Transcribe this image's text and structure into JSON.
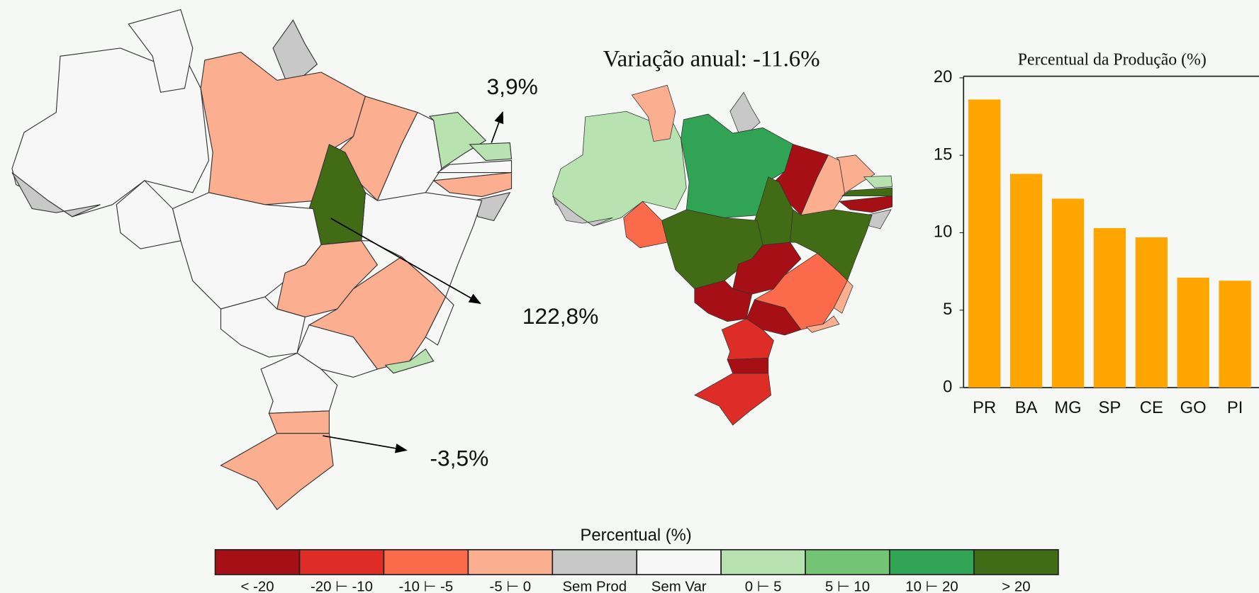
{
  "chart_data": {
    "type": "bar",
    "title": "Percentual da Produção (%)",
    "categories": [
      "PR",
      "BA",
      "MG",
      "SP",
      "CE",
      "GO",
      "PI"
    ],
    "values": [
      18.6,
      13.8,
      12.2,
      10.3,
      9.7,
      7.1,
      6.9
    ],
    "color": "#ffa500",
    "ylim": [
      0,
      20
    ],
    "yticks": [
      0,
      5,
      10,
      15,
      20
    ]
  },
  "maps": {
    "title": "Variação anual: -11.6%",
    "annotations": [
      "3,9%",
      "122,8%",
      "-3,5%"
    ]
  },
  "legend": {
    "title": "Percentual (%)",
    "items": [
      {
        "label": "< -20",
        "color": "#a50f15"
      },
      {
        "label": "-20 ⊢ -10",
        "color": "#de2d26"
      },
      {
        "label": "-10 ⊢ -5",
        "color": "#fb6a4a"
      },
      {
        "label": "-5 ⊢ 0",
        "color": "#fcae91"
      },
      {
        "label": "Sem Prod",
        "color": "#c8c8c8"
      },
      {
        "label": "Sem Var",
        "color": "#f7f7f7"
      },
      {
        "label": "0 ⊢ 5",
        "color": "#b8e3b1"
      },
      {
        "label": "5 ⊢ 10",
        "color": "#74c476"
      },
      {
        "label": "10 ⊢ 20",
        "color": "#31a354"
      },
      {
        "label": "> 20",
        "color": "#416b14"
      }
    ]
  }
}
